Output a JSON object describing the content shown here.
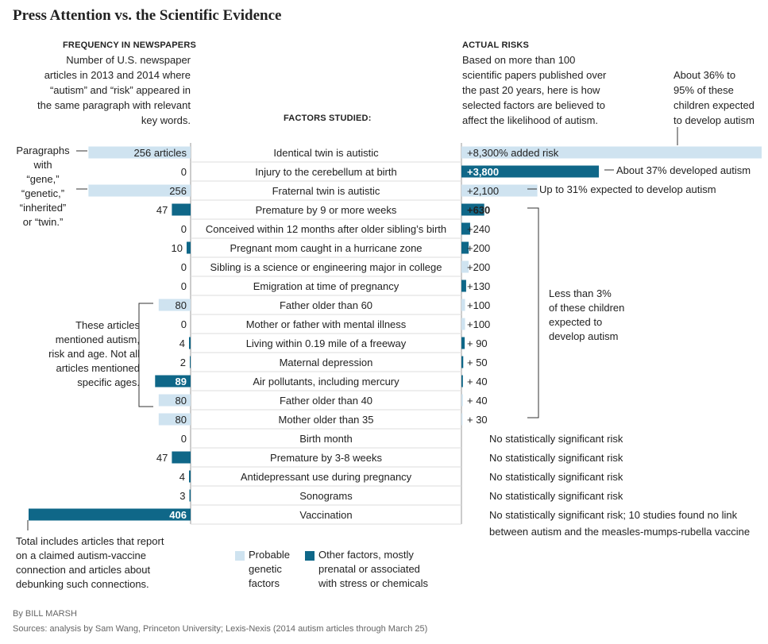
{
  "title": "Press Attention vs. the Scientific Evidence",
  "left_header": {
    "label": "FREQUENCY IN NEWSPAPERS",
    "description": [
      "Number of U.S. newspaper",
      "articles in 2013 and 2014 where",
      "“autism” and “risk” appeared in",
      "the same paragraph with relevant",
      "key words."
    ]
  },
  "mid_header": {
    "label": "FACTORS STUDIED:"
  },
  "right_header": {
    "label": "ACTUAL RISKS",
    "description": [
      "Based on more than 100",
      "scientific papers published over",
      "the past 20 years, here is how",
      "selected factors are believed to",
      "affect the likelihood of autism."
    ]
  },
  "colors": {
    "genetic": "#cfe3f0",
    "other": "#0f6788",
    "axis": "#999999",
    "text": "#222222"
  },
  "annotations": {
    "paragraphs": [
      "Paragraphs",
      "with",
      "“gene,”",
      "“genetic,”",
      "“inherited”",
      "or “twin.”"
    ],
    "age_articles": [
      "These articles",
      "mentioned autism,",
      "risk and age. Not all",
      "articles mentioned",
      "specific ages."
    ],
    "vaccine_total": [
      "Total includes articles that report",
      "on a claimed autism-vaccine",
      "connection and articles about",
      "debunking such connections."
    ],
    "twin_identical": [
      "About 36% to",
      "95% of these",
      "children expected",
      "to develop autism"
    ],
    "cerebellum": "About 37% developed autism",
    "fraternal": "Up to 31% expected to develop autism",
    "less_than_3": [
      "Less than 3%",
      "of these children",
      "expected to",
      "develop autism"
    ]
  },
  "legend": {
    "genetic": [
      "Probable",
      "genetic",
      "factors"
    ],
    "other": [
      "Other factors, mostly",
      "prenatal or associated",
      "with stress or chemicals"
    ]
  },
  "byline": "By BILL MARSH",
  "sources": "Sources: analysis by Sam Wang, Princeton University; Lexis-Nexis (2014 autism articles through March 25)",
  "chart_data": {
    "type": "bar",
    "categories": [
      "Identical twin is autistic",
      "Injury to the cerebellum at birth",
      "Fraternal twin is autistic",
      "Premature by 9 or more weeks",
      "Conceived within 12 months after older sibling’s birth",
      "Pregnant mom caught in a hurricane zone",
      "Sibling is a science or engineering major in college",
      "Emigration at time of pregnancy",
      "Father older than 60",
      "Mother or father with mental illness",
      "Living within 0.19 mile of a freeway",
      "Maternal depression",
      "Air pollutants, including mercury",
      "Father older than 40",
      "Mother older than 35",
      "Birth month",
      "Premature by 3-8 weeks",
      "Antidepressant use during pregnancy",
      "Sonograms",
      "Vaccination"
    ],
    "factor_type": [
      "genetic",
      "other",
      "genetic",
      "other",
      "other",
      "other",
      "genetic",
      "other",
      "genetic",
      "genetic",
      "other",
      "other",
      "other",
      "genetic",
      "genetic",
      "other",
      "other",
      "other",
      "other",
      "other"
    ],
    "articles": {
      "values": [
        256,
        0,
        256,
        47,
        0,
        10,
        0,
        0,
        80,
        0,
        4,
        2,
        89,
        80,
        80,
        0,
        47,
        4,
        3,
        406
      ],
      "labels": [
        "256 articles",
        "0",
        "256",
        "47",
        "0",
        "10",
        "0",
        "0",
        "80",
        "0",
        "4",
        "2",
        "89",
        "80",
        "80",
        "0",
        "47",
        "4",
        "3",
        "406"
      ]
    },
    "risk": {
      "values": [
        8300,
        3800,
        2100,
        630,
        240,
        200,
        200,
        130,
        100,
        100,
        90,
        50,
        40,
        40,
        30,
        null,
        null,
        null,
        null,
        null
      ],
      "labels": [
        "+8,300% added risk",
        "+3,800",
        "+2,100",
        "+630",
        "+240",
        "+200",
        "+200",
        "+130",
        "+100",
        "+100",
        "+ 90",
        "+ 50",
        "+ 40",
        "+ 40",
        "+ 30",
        "No statistically significant risk",
        "No statistically significant risk",
        "No statistically significant risk",
        "No statistically significant risk",
        "No statistically significant risk; 10 studies found no link"
      ],
      "label_line2": [
        "",
        "",
        "",
        "",
        "",
        "",
        "",
        "",
        "",
        "",
        "",
        "",
        "",
        "",
        "",
        "",
        "",
        "",
        "",
        "between autism and the measles-mumps-rubella vaccine"
      ]
    }
  }
}
